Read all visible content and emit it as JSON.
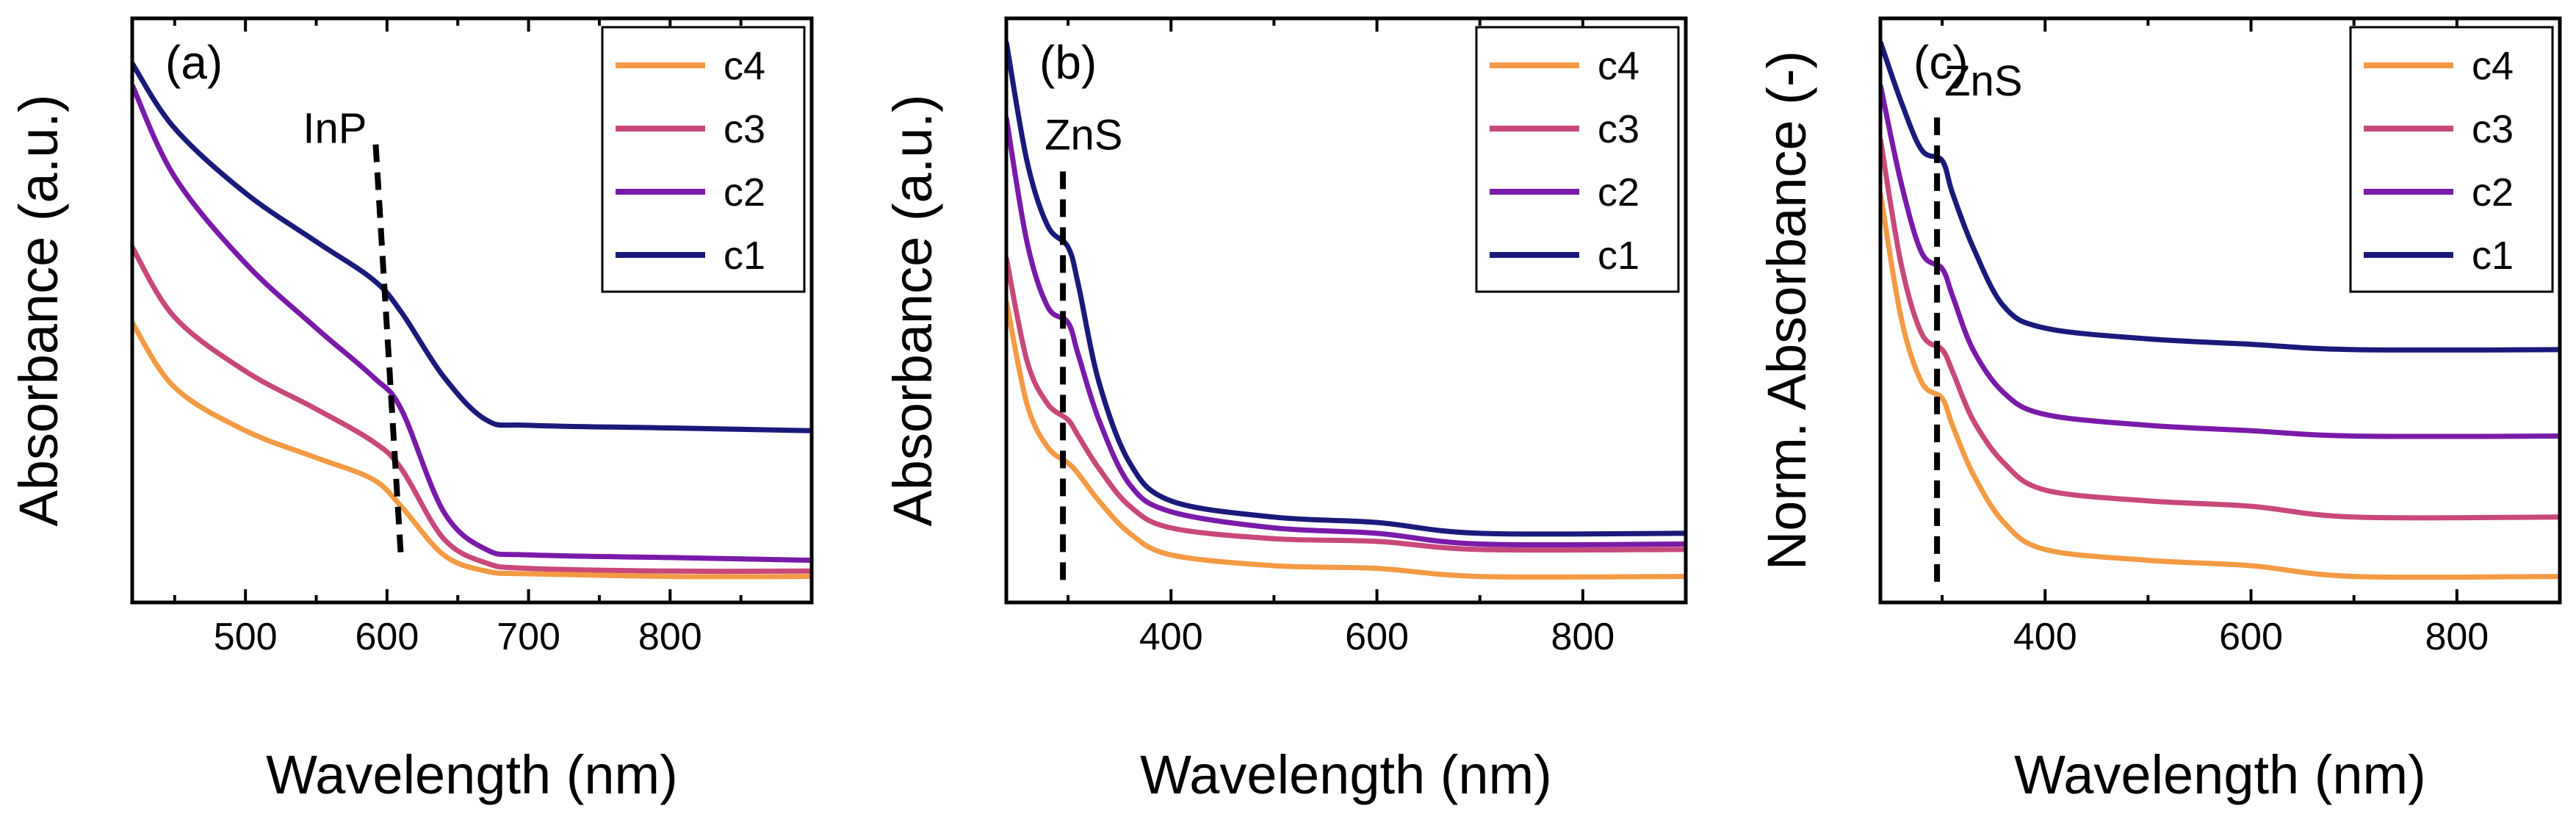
{
  "colors": {
    "c1": "#1a1a7a",
    "c2": "#7a1aa8",
    "c3": "#c8487a",
    "c4": "#f39a44"
  },
  "chart_data": [
    {
      "type": "line",
      "panel_label": "(a)",
      "xlabel": "Wavelength (nm)",
      "ylabel": "Absorbance (a.u.)",
      "xlim": [
        420,
        900
      ],
      "ylim": [
        0,
        1
      ],
      "xticks": [
        500,
        600,
        700,
        800
      ],
      "xtick_labels": [
        "500",
        "600",
        "700",
        "800"
      ],
      "yticks_shown": false,
      "legend": [
        "c4",
        "c3",
        "c2",
        "c1"
      ],
      "legend_position": "top-right",
      "annotation": {
        "text": "InP",
        "line": [
          [
            592,
            0.81
          ],
          [
            610,
            0.04
          ]
        ]
      },
      "series": [
        {
          "name": "c1",
          "x": [
            420,
            450,
            500,
            550,
            590,
            610,
            640,
            670,
            700,
            800,
            900
          ],
          "y": [
            0.96,
            0.84,
            0.72,
            0.63,
            0.56,
            0.5,
            0.38,
            0.3,
            0.29,
            0.285,
            0.28
          ]
        },
        {
          "name": "c2",
          "x": [
            420,
            450,
            500,
            550,
            590,
            610,
            640,
            670,
            700,
            800,
            900
          ],
          "y": [
            0.92,
            0.75,
            0.59,
            0.47,
            0.38,
            0.32,
            0.13,
            0.06,
            0.05,
            0.045,
            0.04
          ]
        },
        {
          "name": "c3",
          "x": [
            420,
            450,
            500,
            550,
            590,
            610,
            640,
            670,
            700,
            800,
            900
          ],
          "y": [
            0.62,
            0.49,
            0.39,
            0.32,
            0.26,
            0.21,
            0.08,
            0.035,
            0.025,
            0.02,
            0.02
          ]
        },
        {
          "name": "c4",
          "x": [
            420,
            450,
            500,
            550,
            590,
            610,
            640,
            670,
            700,
            800,
            900
          ],
          "y": [
            0.48,
            0.36,
            0.28,
            0.23,
            0.19,
            0.14,
            0.05,
            0.02,
            0.015,
            0.01,
            0.01
          ]
        }
      ]
    },
    {
      "type": "line",
      "panel_label": "(b)",
      "xlabel": "Wavelength (nm)",
      "ylabel": "Absorbance (a.u.)",
      "xlim": [
        240,
        900
      ],
      "ylim": [
        0,
        1
      ],
      "xticks": [
        400,
        600,
        800
      ],
      "xtick_labels": [
        "400",
        "600",
        "800"
      ],
      "yticks_shown": false,
      "legend": [
        "c4",
        "c3",
        "c2",
        "c1"
      ],
      "legend_position": "top-right",
      "annotation": {
        "text": "ZnS",
        "line": [
          [
            295,
            0.76
          ],
          [
            295,
            0.0
          ]
        ]
      },
      "series": [
        {
          "name": "c1",
          "x": [
            240,
            260,
            280,
            300,
            310,
            330,
            360,
            400,
            500,
            600,
            700,
            900
          ],
          "y": [
            1.0,
            0.78,
            0.66,
            0.62,
            0.55,
            0.37,
            0.22,
            0.15,
            0.12,
            0.11,
            0.09,
            0.09
          ]
        },
        {
          "name": "c2",
          "x": [
            240,
            260,
            280,
            300,
            310,
            330,
            360,
            400,
            500,
            600,
            700,
            900
          ],
          "y": [
            0.86,
            0.63,
            0.51,
            0.48,
            0.42,
            0.3,
            0.18,
            0.13,
            0.1,
            0.09,
            0.07,
            0.07
          ]
        },
        {
          "name": "c3",
          "x": [
            240,
            260,
            280,
            300,
            310,
            330,
            360,
            400,
            500,
            600,
            700,
            900
          ],
          "y": [
            0.6,
            0.41,
            0.33,
            0.3,
            0.27,
            0.21,
            0.14,
            0.1,
            0.08,
            0.075,
            0.06,
            0.06
          ]
        },
        {
          "name": "c4",
          "x": [
            240,
            260,
            280,
            300,
            310,
            330,
            360,
            400,
            500,
            600,
            700,
            900
          ],
          "y": [
            0.52,
            0.33,
            0.25,
            0.22,
            0.2,
            0.15,
            0.09,
            0.05,
            0.03,
            0.025,
            0.01,
            0.01
          ]
        }
      ]
    },
    {
      "type": "line",
      "panel_label": "(c)",
      "xlabel": "Wavelength (nm)",
      "ylabel": "Norm. Absorbance (-)",
      "xlim": [
        240,
        900
      ],
      "ylim": [
        0,
        1
      ],
      "xticks": [
        400,
        600,
        800
      ],
      "xtick_labels": [
        "400",
        "600",
        "800"
      ],
      "yticks_shown": false,
      "legend": [
        "c4",
        "c3",
        "c2",
        "c1"
      ],
      "legend_position": "top-right",
      "annotation": {
        "text": "ZnS",
        "line": [
          [
            295,
            0.86
          ],
          [
            295,
            0.0
          ]
        ]
      },
      "series": [
        {
          "name": "c1",
          "x": [
            240,
            260,
            280,
            300,
            310,
            330,
            360,
            400,
            500,
            600,
            700,
            900
          ],
          "y": [
            1.0,
            0.89,
            0.8,
            0.78,
            0.72,
            0.62,
            0.51,
            0.47,
            0.45,
            0.44,
            0.43,
            0.43
          ]
        },
        {
          "name": "c2",
          "x": [
            240,
            260,
            280,
            300,
            310,
            330,
            360,
            400,
            500,
            600,
            700,
            900
          ],
          "y": [
            0.92,
            0.74,
            0.61,
            0.58,
            0.53,
            0.43,
            0.35,
            0.31,
            0.29,
            0.28,
            0.27,
            0.27
          ]
        },
        {
          "name": "c3",
          "x": [
            240,
            260,
            280,
            300,
            310,
            330,
            360,
            400,
            500,
            600,
            700,
            900
          ],
          "y": [
            0.82,
            0.59,
            0.46,
            0.43,
            0.39,
            0.3,
            0.22,
            0.17,
            0.15,
            0.14,
            0.12,
            0.12
          ]
        },
        {
          "name": "c4",
          "x": [
            240,
            260,
            280,
            300,
            310,
            330,
            360,
            400,
            500,
            600,
            700,
            900
          ],
          "y": [
            0.72,
            0.49,
            0.37,
            0.34,
            0.29,
            0.2,
            0.11,
            0.06,
            0.04,
            0.03,
            0.01,
            0.01
          ]
        }
      ]
    }
  ]
}
